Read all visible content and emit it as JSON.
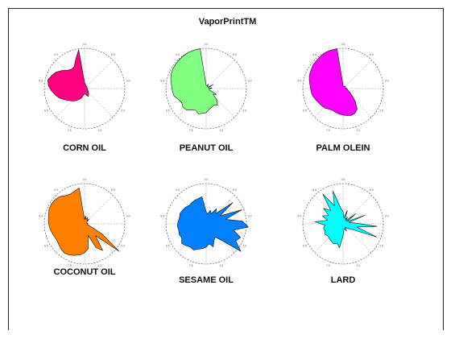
{
  "title": "VaporPrintTM",
  "chart_data": [
    {
      "type": "radar",
      "title": "CORN OIL",
      "color": "#ff0080",
      "values": [
        0.15,
        0.12,
        0.1,
        0.08,
        0.08,
        0.07,
        0.07,
        0.07,
        0.07,
        0.06,
        0.06,
        0.07,
        0.08,
        0.08,
        0.1,
        0.12,
        0.14,
        0.18,
        0.22,
        0.18,
        0.14,
        0.12,
        0.16,
        0.24,
        0.3,
        0.36,
        0.42,
        0.48,
        0.56,
        0.66,
        0.74,
        0.82,
        0.9,
        0.94,
        0.88,
        0.82,
        0.72,
        0.62,
        0.58,
        0.6,
        0.75,
        0.98
      ],
      "ticks": [
        "0.0",
        "5.0",
        "3.0",
        "2.0",
        "1.0",
        "7.5",
        "6.5",
        "8.0",
        "0.0"
      ]
    },
    {
      "type": "radar",
      "title": "PEANUT OIL",
      "color": "#80ff80",
      "values": [
        0.08,
        0.07,
        0.07,
        0.12,
        0.06,
        0.06,
        0.06,
        0.2,
        0.06,
        0.07,
        0.15,
        0.08,
        0.07,
        0.08,
        0.3,
        0.22,
        0.4,
        0.5,
        0.45,
        0.48,
        0.52,
        0.6,
        0.62,
        0.66,
        0.6,
        0.64,
        0.72,
        0.74,
        0.7,
        0.74,
        0.82,
        0.84,
        0.86,
        0.9,
        0.94,
        0.96,
        0.97,
        0.98,
        0.99,
        1.0,
        1.0,
        1.0
      ],
      "ticks": [
        "0.0",
        "5.0",
        "3.0",
        "2.0",
        "1.0",
        "7.5",
        "6.5",
        "8.0",
        "0.0"
      ]
    },
    {
      "type": "radar",
      "title": "PALM OLEIN",
      "color": "#ff00ff",
      "values": [
        0.08,
        0.06,
        0.06,
        0.06,
        0.07,
        0.08,
        0.07,
        0.07,
        0.06,
        0.07,
        0.09,
        0.1,
        0.12,
        0.14,
        0.2,
        0.3,
        0.45,
        0.62,
        0.68,
        0.7,
        0.68,
        0.66,
        0.64,
        0.62,
        0.6,
        0.62,
        0.66,
        0.68,
        0.7,
        0.74,
        0.78,
        0.8,
        0.82,
        0.86,
        0.9,
        0.92,
        0.95,
        0.96,
        0.98,
        1.0,
        1.0,
        1.0
      ],
      "ticks": [
        "0.0",
        "5.0",
        "3.0",
        "2.0",
        "1.0",
        "7.5",
        "6.5",
        "8.0",
        "0.0"
      ]
    },
    {
      "type": "radar",
      "title": "COCONUT OIL",
      "color": "#ff8000",
      "values": [
        0.1,
        0.2,
        0.12,
        0.18,
        0.1,
        0.16,
        0.08,
        0.07,
        0.06,
        0.06,
        0.08,
        0.06,
        0.08,
        0.14,
        0.5,
        1.1,
        0.4,
        0.8,
        0.65,
        0.3,
        0.62,
        0.72,
        0.78,
        0.82,
        0.86,
        0.88,
        0.86,
        0.82,
        0.8,
        0.82,
        0.85,
        0.88,
        0.9,
        0.92,
        0.95,
        0.96,
        0.95,
        0.92,
        0.85,
        0.82,
        0.85,
        0.9
      ],
      "ticks": [
        "0.0",
        "5.0",
        "3.0",
        "2.0",
        "1.0",
        "7.5",
        "6.5",
        "8.0",
        "0.0"
      ]
    },
    {
      "type": "radar",
      "title": "SESAME OIL",
      "color": "#0080ff",
      "values": [
        0.3,
        0.25,
        0.35,
        0.28,
        0.45,
        0.35,
        0.85,
        0.4,
        0.95,
        0.5,
        0.9,
        1.05,
        0.7,
        0.92,
        0.85,
        1.1,
        0.55,
        0.4,
        0.45,
        0.6,
        0.5,
        0.58,
        0.62,
        0.66,
        0.72,
        0.7,
        0.74,
        0.78,
        0.7,
        0.72,
        0.7,
        0.72,
        0.7,
        0.68,
        0.7,
        0.68,
        0.66,
        0.62,
        0.64,
        0.65,
        0.66,
        0.68
      ],
      "ticks": [
        "0.0",
        "5.0",
        "3.0",
        "2.0",
        "1.0",
        "7.5",
        "6.5",
        "8.0",
        "0.0"
      ]
    },
    {
      "type": "radar",
      "title": "LARD",
      "color": "#00ffff",
      "values": [
        0.3,
        0.15,
        0.35,
        0.12,
        0.2,
        0.1,
        0.4,
        0.12,
        0.6,
        0.15,
        0.3,
        0.85,
        0.35,
        0.9,
        0.3,
        0.2,
        0.15,
        0.1,
        0.2,
        0.12,
        0.15,
        0.3,
        0.6,
        0.5,
        0.55,
        0.52,
        0.5,
        0.48,
        0.52,
        0.48,
        0.5,
        0.45,
        0.7,
        0.4,
        0.55,
        0.42,
        0.62,
        0.45,
        0.9,
        0.5,
        0.85,
        0.4
      ],
      "ticks": [
        "0.0",
        "5.0",
        "3.0",
        "2.0",
        "1.0",
        "7.5",
        "6.5",
        "8.0",
        "0.0"
      ]
    }
  ]
}
